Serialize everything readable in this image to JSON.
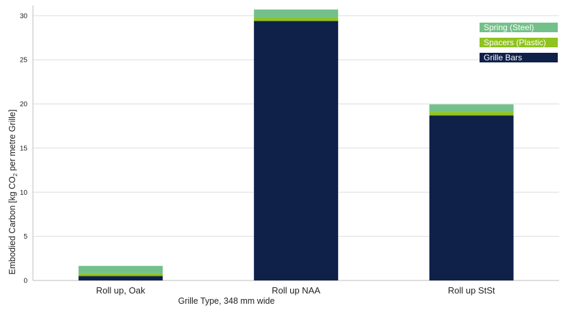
{
  "chart_data": {
    "type": "bar",
    "stacked": true,
    "categories": [
      "Roll up, Oak",
      "Roll up NAA",
      "Roll up StSt"
    ],
    "series": [
      {
        "name": "Grille Bars",
        "color": "#0f2149",
        "values": [
          0.5,
          29.4,
          18.7
        ]
      },
      {
        "name": "Spacers (Plastic)",
        "color": "#8fc31f",
        "values": [
          0.3,
          0.4,
          0.4
        ]
      },
      {
        "name": "Spring (Steel)",
        "color": "#74c08a",
        "values": [
          0.85,
          0.9,
          0.85
        ]
      }
    ],
    "xlabel": "Grille Type, 348 mm wide",
    "ylabel": {
      "before": "Embodied Carbon [kg CO",
      "subscript": "2",
      "after": " per metre Grille]"
    },
    "ylim": [
      0,
      31
    ],
    "yticks": [
      0,
      5,
      10,
      15,
      20,
      25,
      30
    ],
    "grid": true,
    "legend_position": "top-right",
    "legend_order": [
      "Spring (Steel)",
      "Spacers (Plastic)",
      "Grille Bars"
    ]
  }
}
